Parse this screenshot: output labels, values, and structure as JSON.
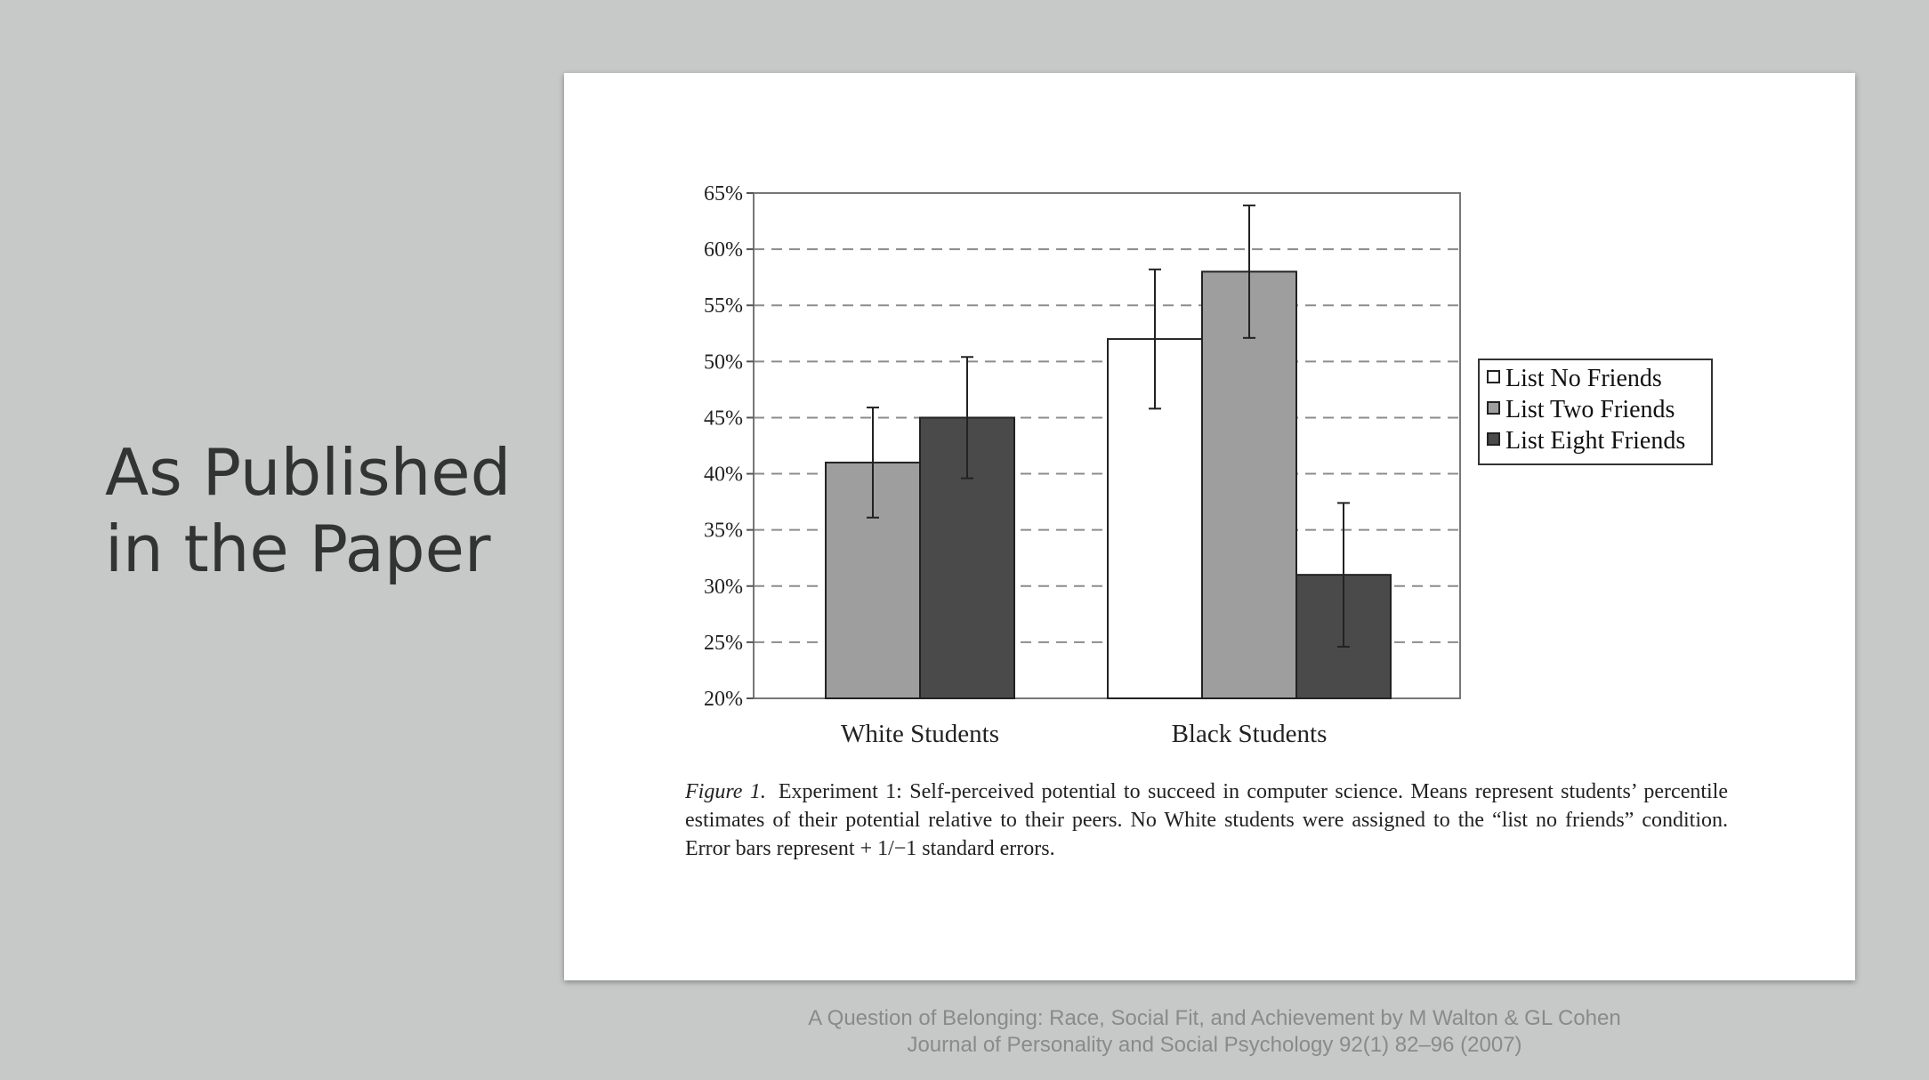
{
  "slide": {
    "title_line1": "As Published",
    "title_line2": "in the Paper"
  },
  "caption": {
    "label": "Figure 1.",
    "text": "Experiment 1: Self-perceived potential to succeed in computer science. Means represent students’ percentile estimates of their potential relative to their peers. No White students were assigned to the “list no friends” condition. Error bars represent + 1/−1 standard errors."
  },
  "source": {
    "line1": "A Question of Belonging: Race, Social Fit, and Achievement by M Walton & GL Cohen",
    "line2": "Journal of Personality and Social Psychology 92(1) 82–96 (2007)"
  },
  "chart_data": {
    "type": "bar",
    "title": "",
    "xlabel": "",
    "ylabel": "",
    "ylim": [
      20,
      65
    ],
    "yticks": [
      20,
      25,
      30,
      35,
      40,
      45,
      50,
      55,
      60,
      65
    ],
    "ytick_suffix": "%",
    "grid": "dashed horizontal",
    "legend_position": "right",
    "categories": [
      "White Students",
      "Black Students"
    ],
    "series": [
      {
        "name": "List No Friends",
        "color": "#ffffff",
        "values": [
          null,
          52
        ],
        "error": [
          null,
          6.2
        ]
      },
      {
        "name": "List Two Friends",
        "color": "#9e9e9e",
        "values": [
          41,
          58
        ],
        "error": [
          4.9,
          5.9
        ]
      },
      {
        "name": "List Eight Friends",
        "color": "#4a4a4a",
        "values": [
          45,
          31
        ],
        "error": [
          5.4,
          6.4
        ]
      }
    ],
    "layout": {
      "White Students": [
        "List Two Friends",
        "List Eight Friends"
      ],
      "Black Students": [
        "List No Friends",
        "List Two Friends",
        "List Eight Friends"
      ]
    }
  }
}
